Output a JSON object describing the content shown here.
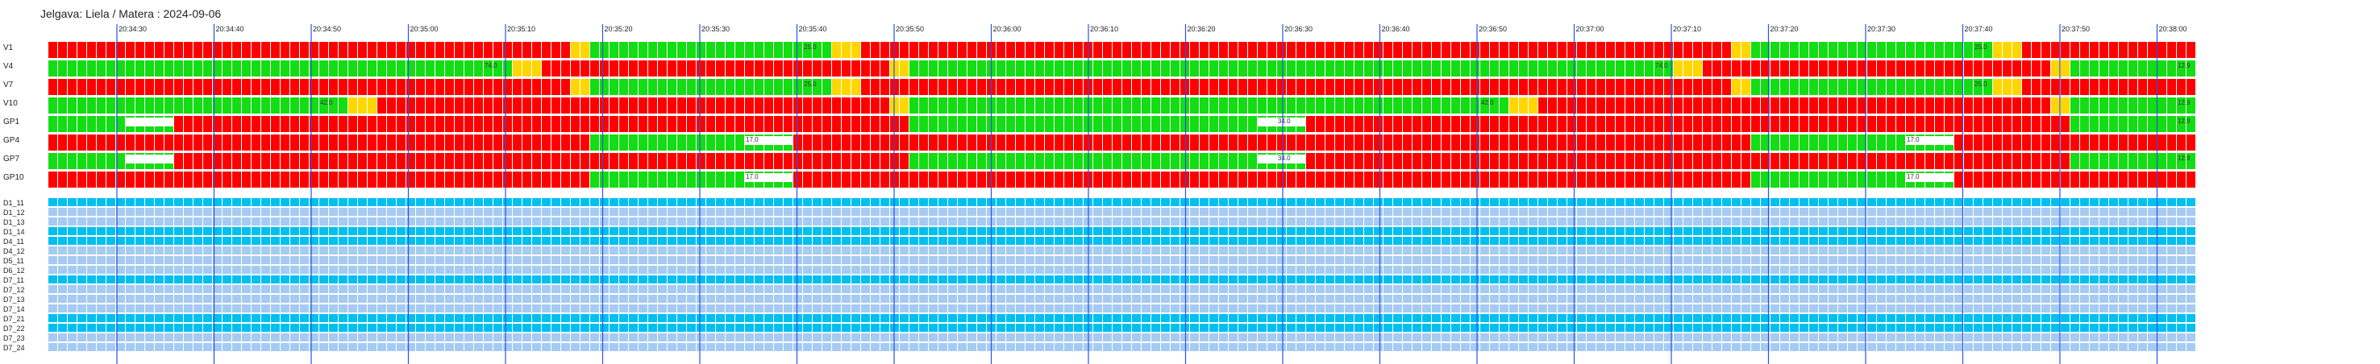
{
  "header": {
    "title": "Jelgava: Liela / Matera : 2024-09-06"
  },
  "timeline": {
    "time_labels": [
      "20:34:30",
      "20:34:40",
      "20:34:50",
      "20:35:00",
      "20:35:10",
      "20:35:20",
      "20:35:30",
      "20:35:40",
      "20:35:50",
      "20:36:00",
      "20:36:10",
      "20:36:20",
      "20:36:30",
      "20:36:40",
      "20:36:50",
      "20:37:00",
      "20:37:10",
      "20:37:20",
      "20:37:30",
      "20:37:40",
      "20:37:50",
      "20:38:00"
    ],
    "column_count": 222
  },
  "signal_rows": [
    {
      "label": "V1",
      "segments": [
        [
          0,
          54,
          "red"
        ],
        [
          54,
          56,
          "yellow"
        ],
        [
          56,
          81,
          "green"
        ],
        [
          81,
          84,
          "yellow"
        ],
        [
          84,
          174,
          "red"
        ],
        [
          174,
          176,
          "yellow"
        ],
        [
          176,
          201,
          "green"
        ],
        [
          201,
          204,
          "yellow"
        ],
        [
          204,
          222,
          "red"
        ]
      ],
      "value_labels": [
        {
          "col": 78,
          "text": "25.0"
        },
        {
          "col": 199,
          "text": "25.0"
        }
      ]
    },
    {
      "label": "V4",
      "segments": [
        [
          0,
          48,
          "green"
        ],
        [
          48,
          51,
          "yellow"
        ],
        [
          51,
          87,
          "red"
        ],
        [
          87,
          89,
          "yellow"
        ],
        [
          89,
          168,
          "green"
        ],
        [
          168,
          171,
          "yellow"
        ],
        [
          171,
          207,
          "red"
        ],
        [
          207,
          209,
          "yellow"
        ],
        [
          209,
          222,
          "green"
        ]
      ],
      "value_labels": [
        {
          "col": 45,
          "text": "74.0"
        },
        {
          "col": 166,
          "text": "74.0"
        },
        {
          "col": 220,
          "text": "12.9"
        }
      ]
    },
    {
      "label": "V7",
      "segments": [
        [
          0,
          54,
          "red"
        ],
        [
          54,
          56,
          "yellow"
        ],
        [
          56,
          81,
          "green"
        ],
        [
          81,
          84,
          "yellow"
        ],
        [
          84,
          174,
          "red"
        ],
        [
          174,
          176,
          "yellow"
        ],
        [
          176,
          201,
          "green"
        ],
        [
          201,
          204,
          "yellow"
        ],
        [
          204,
          222,
          "red"
        ]
      ],
      "value_labels": [
        {
          "col": 78,
          "text": "25.0"
        },
        {
          "col": 199,
          "text": "25.0"
        }
      ]
    },
    {
      "label": "V10",
      "segments": [
        [
          0,
          31,
          "green"
        ],
        [
          31,
          34,
          "yellow"
        ],
        [
          34,
          87,
          "red"
        ],
        [
          87,
          89,
          "yellow"
        ],
        [
          89,
          151,
          "green"
        ],
        [
          151,
          154,
          "yellow"
        ],
        [
          154,
          207,
          "red"
        ],
        [
          207,
          209,
          "yellow"
        ],
        [
          209,
          222,
          "green"
        ]
      ],
      "value_labels": [
        {
          "col": 28,
          "text": "42.0"
        },
        {
          "col": 148,
          "text": "42.0"
        },
        {
          "col": 220,
          "text": "12.9"
        }
      ]
    },
    {
      "label": "GP1",
      "segments": [
        [
          0,
          13,
          "green"
        ],
        [
          13,
          89,
          "red"
        ],
        [
          89,
          130,
          "green"
        ],
        [
          130,
          209,
          "red"
        ],
        [
          209,
          222,
          "green"
        ]
      ],
      "value_labels": [
        {
          "col": 127,
          "text": "34.0"
        },
        {
          "col": 220,
          "text": "12.9"
        }
      ],
      "white_gaps": [
        [
          8,
          13
        ],
        [
          125,
          130
        ]
      ]
    },
    {
      "label": "GP4",
      "segments": [
        [
          0,
          56,
          "red"
        ],
        [
          56,
          77,
          "green"
        ],
        [
          77,
          176,
          "red"
        ],
        [
          176,
          197,
          "green"
        ],
        [
          197,
          222,
          "red"
        ]
      ],
      "value_labels": [
        {
          "col": 72,
          "text": "17.0"
        },
        {
          "col": 192,
          "text": "17.0"
        }
      ],
      "white_gaps": [
        [
          72,
          77
        ],
        [
          192,
          197
        ]
      ]
    },
    {
      "label": "GP7",
      "segments": [
        [
          0,
          13,
          "green"
        ],
        [
          13,
          89,
          "red"
        ],
        [
          89,
          130,
          "green"
        ],
        [
          130,
          209,
          "red"
        ],
        [
          209,
          222,
          "green"
        ]
      ],
      "value_labels": [
        {
          "col": 127,
          "text": "34.0"
        },
        {
          "col": 220,
          "text": "12.9"
        }
      ],
      "white_gaps": [
        [
          8,
          13
        ],
        [
          125,
          130
        ]
      ]
    },
    {
      "label": "GP10",
      "segments": [
        [
          0,
          56,
          "red"
        ],
        [
          56,
          77,
          "green"
        ],
        [
          77,
          176,
          "red"
        ],
        [
          176,
          197,
          "green"
        ],
        [
          197,
          222,
          "red"
        ]
      ],
      "value_labels": [
        {
          "col": 72,
          "text": "17.0"
        },
        {
          "col": 192,
          "text": "17.0"
        }
      ],
      "white_gaps": [
        [
          72,
          77
        ],
        [
          192,
          197
        ]
      ]
    }
  ],
  "detector_rows": [
    {
      "label": "D1_11",
      "state": "active"
    },
    {
      "label": "D1_12",
      "state": "inactive"
    },
    {
      "label": "D1_13",
      "state": "inactive"
    },
    {
      "label": "D1_14",
      "state": "active"
    },
    {
      "label": "D4_11",
      "state": "active"
    },
    {
      "label": "D4_12",
      "state": "inactive"
    },
    {
      "label": "D5_11",
      "state": "inactive"
    },
    {
      "label": "D6_12",
      "state": "inactive"
    },
    {
      "label": "D7_11",
      "state": "active"
    },
    {
      "label": "D7_12",
      "state": "inactive"
    },
    {
      "label": "D7_13",
      "state": "inactive"
    },
    {
      "label": "D7_14",
      "state": "inactive"
    },
    {
      "label": "D7_21",
      "state": "active"
    },
    {
      "label": "D7_22",
      "state": "active"
    },
    {
      "label": "D7_23",
      "state": "inactive"
    },
    {
      "label": "D7_24",
      "state": "inactive"
    }
  ],
  "colors": {
    "red": "#ff0000",
    "green": "#13dd13",
    "yellow": "#ffd700",
    "detector_active": "#00c0f0",
    "detector_inactive": "#a6cbf2",
    "time_gridline": "#2a52e8"
  }
}
